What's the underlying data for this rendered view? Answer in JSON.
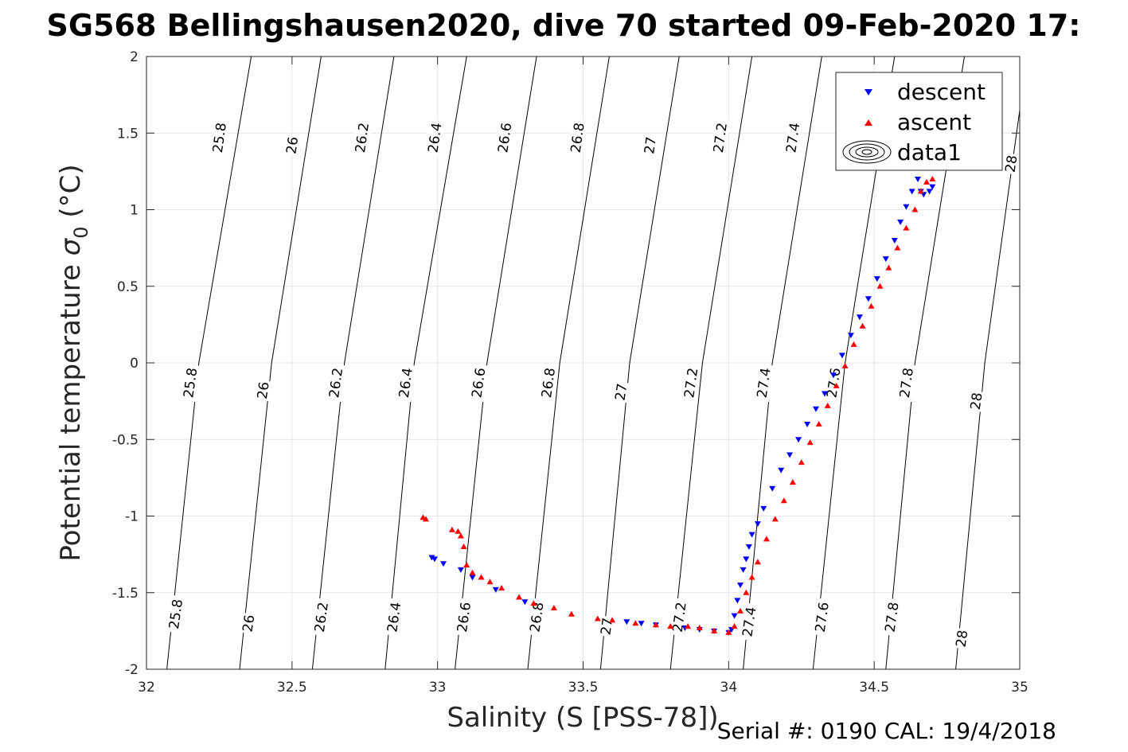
{
  "figure": {
    "title": "SG568 Bellingshausen2020, dive 70 started 09-Feb-2020 17:",
    "footer": "Serial #: 0190  CAL: 19/4/2018"
  },
  "chart_data": {
    "type": "scatter",
    "xlabel": "Salinity (S [PSS-78])",
    "ylabel": "Potential temperature",
    "ylabel_symbol": "σ",
    "ylabel_subscript": "0",
    "ylabel_unit": "(°C)",
    "xlim": [
      32,
      35
    ],
    "ylim": [
      -2,
      2
    ],
    "xticks": [
      32,
      32.5,
      33,
      33.5,
      34,
      34.5,
      35
    ],
    "yticks": [
      -2,
      -1.5,
      -1,
      -0.5,
      0,
      0.5,
      1,
      1.5,
      2
    ],
    "grid": true,
    "legend": {
      "placement": "top-right",
      "entries": [
        "descent",
        "ascent",
        "data1"
      ]
    },
    "colors": {
      "descent": "#0000ff",
      "ascent": "#ff0000",
      "contour": "#000000"
    },
    "density_contours": [
      {
        "level": "25.8",
        "points": [
          [
            32.07,
            -2
          ],
          [
            32.18,
            0
          ],
          [
            32.36,
            2
          ]
        ]
      },
      {
        "level": "26",
        "points": [
          [
            32.32,
            -2
          ],
          [
            32.43,
            0
          ],
          [
            32.6,
            2
          ]
        ]
      },
      {
        "level": "26.2",
        "points": [
          [
            32.57,
            -2
          ],
          [
            32.68,
            0
          ],
          [
            32.85,
            2
          ]
        ]
      },
      {
        "level": "26.4",
        "points": [
          [
            32.82,
            -2
          ],
          [
            32.92,
            0
          ],
          [
            33.1,
            2
          ]
        ]
      },
      {
        "level": "26.6",
        "points": [
          [
            33.06,
            -2
          ],
          [
            33.17,
            0
          ],
          [
            33.34,
            2
          ]
        ]
      },
      {
        "level": "26.8",
        "points": [
          [
            33.31,
            -2
          ],
          [
            33.42,
            0
          ],
          [
            33.59,
            2
          ]
        ]
      },
      {
        "level": "27",
        "points": [
          [
            33.56,
            -2
          ],
          [
            33.66,
            0
          ],
          [
            33.83,
            2
          ]
        ]
      },
      {
        "level": "27.2",
        "points": [
          [
            33.8,
            -2
          ],
          [
            33.91,
            0
          ],
          [
            34.08,
            2
          ]
        ]
      },
      {
        "level": "27.4",
        "points": [
          [
            34.05,
            -2
          ],
          [
            34.15,
            0
          ],
          [
            34.32,
            2
          ]
        ]
      },
      {
        "level": "27.6",
        "points": [
          [
            34.29,
            -2
          ],
          [
            34.4,
            0
          ],
          [
            34.57,
            2
          ]
        ]
      },
      {
        "level": "27.8",
        "points": [
          [
            34.54,
            -2
          ],
          [
            34.64,
            0
          ],
          [
            34.81,
            2
          ]
        ]
      },
      {
        "level": "28",
        "points": [
          [
            34.78,
            -2
          ],
          [
            34.88,
            0
          ],
          [
            35.0,
            1.65
          ]
        ]
      }
    ],
    "contour_labels": [
      {
        "text": "25.8",
        "x": 32.1,
        "y": -1.64
      },
      {
        "text": "26",
        "x": 32.35,
        "y": -1.7
      },
      {
        "text": "26.2",
        "x": 32.6,
        "y": -1.66
      },
      {
        "text": "26.4",
        "x": 32.85,
        "y": -1.66
      },
      {
        "text": "26.6",
        "x": 33.09,
        "y": -1.66
      },
      {
        "text": "26.8",
        "x": 33.34,
        "y": -1.66
      },
      {
        "text": "27",
        "x": 33.58,
        "y": -1.72
      },
      {
        "text": "27.2",
        "x": 33.83,
        "y": -1.66
      },
      {
        "text": "27.4",
        "x": 34.07,
        "y": -1.69
      },
      {
        "text": "27.6",
        "x": 34.32,
        "y": -1.66
      },
      {
        "text": "27.8",
        "x": 34.56,
        "y": -1.66
      },
      {
        "text": "28",
        "x": 34.8,
        "y": -1.8
      },
      {
        "text": "25.8",
        "x": 32.15,
        "y": -0.13
      },
      {
        "text": "26",
        "x": 32.4,
        "y": -0.18
      },
      {
        "text": "26.2",
        "x": 32.65,
        "y": -0.13
      },
      {
        "text": "26.4",
        "x": 32.89,
        "y": -0.13
      },
      {
        "text": "26.6",
        "x": 33.14,
        "y": -0.13
      },
      {
        "text": "26.8",
        "x": 33.38,
        "y": -0.13
      },
      {
        "text": "27",
        "x": 33.63,
        "y": -0.19
      },
      {
        "text": "27.2",
        "x": 33.87,
        "y": -0.13
      },
      {
        "text": "27.4",
        "x": 34.12,
        "y": -0.13
      },
      {
        "text": "27.6",
        "x": 34.36,
        "y": -0.13
      },
      {
        "text": "27.8",
        "x": 34.61,
        "y": -0.13
      },
      {
        "text": "28",
        "x": 34.85,
        "y": -0.25
      },
      {
        "text": "25.8",
        "x": 32.25,
        "y": 1.47
      },
      {
        "text": "26",
        "x": 32.5,
        "y": 1.42
      },
      {
        "text": "26.2",
        "x": 32.74,
        "y": 1.47
      },
      {
        "text": "26.4",
        "x": 32.99,
        "y": 1.47
      },
      {
        "text": "26.6",
        "x": 33.23,
        "y": 1.47
      },
      {
        "text": "26.8",
        "x": 33.48,
        "y": 1.47
      },
      {
        "text": "27",
        "x": 33.73,
        "y": 1.42
      },
      {
        "text": "27.2",
        "x": 33.97,
        "y": 1.47
      },
      {
        "text": "27.4",
        "x": 34.22,
        "y": 1.47
      },
      {
        "text": "28",
        "x": 34.97,
        "y": 1.3
      }
    ],
    "series": [
      {
        "name": "descent",
        "marker": "triangle-down",
        "x": [
          32.98,
          32.99,
          33.02,
          33.08,
          33.12,
          33.2,
          33.3,
          33.65,
          33.7,
          33.75,
          33.85,
          33.9,
          33.95,
          34.0,
          34.01,
          34.02,
          34.03,
          34.04,
          34.05,
          34.06,
          34.07,
          34.08,
          34.1,
          34.12,
          34.15,
          34.18,
          34.21,
          34.24,
          34.27,
          34.3,
          34.33,
          34.36,
          34.39,
          34.42,
          34.45,
          34.48,
          34.51,
          34.54,
          34.57,
          34.59,
          34.61,
          34.63,
          34.65,
          34.66,
          34.67,
          34.69,
          34.7
        ],
        "y": [
          -1.27,
          -1.28,
          -1.31,
          -1.35,
          -1.4,
          -1.48,
          -1.56,
          -1.69,
          -1.7,
          -1.71,
          -1.73,
          -1.74,
          -1.75,
          -1.76,
          -1.74,
          -1.65,
          -1.55,
          -1.45,
          -1.35,
          -1.28,
          -1.2,
          -1.12,
          -1.05,
          -0.95,
          -0.82,
          -0.7,
          -0.6,
          -0.5,
          -0.4,
          -0.3,
          -0.2,
          -0.08,
          0.05,
          0.18,
          0.3,
          0.42,
          0.55,
          0.68,
          0.8,
          0.92,
          1.02,
          1.12,
          1.2,
          1.12,
          1.1,
          1.12,
          1.15
        ]
      },
      {
        "name": "ascent",
        "marker": "triangle-up",
        "x": [
          32.95,
          32.96,
          33.05,
          33.07,
          33.08,
          33.09,
          33.1,
          33.12,
          33.15,
          33.18,
          33.22,
          33.28,
          33.33,
          33.4,
          33.46,
          33.55,
          33.6,
          33.68,
          33.75,
          33.8,
          33.86,
          33.9,
          33.95,
          34.0,
          34.02,
          34.04,
          34.06,
          34.08,
          34.1,
          34.13,
          34.16,
          34.19,
          34.22,
          34.25,
          34.28,
          34.31,
          34.34,
          34.37,
          34.4,
          34.43,
          34.46,
          34.49,
          34.52,
          34.55,
          34.58,
          34.61,
          34.64,
          34.66,
          34.68,
          34.7
        ],
        "y": [
          -1.01,
          -1.02,
          -1.09,
          -1.1,
          -1.13,
          -1.2,
          -1.32,
          -1.37,
          -1.4,
          -1.43,
          -1.47,
          -1.53,
          -1.57,
          -1.6,
          -1.64,
          -1.67,
          -1.68,
          -1.7,
          -1.71,
          -1.72,
          -1.72,
          -1.73,
          -1.75,
          -1.76,
          -1.72,
          -1.62,
          -1.5,
          -1.4,
          -1.3,
          -1.15,
          -1.02,
          -0.9,
          -0.78,
          -0.65,
          -0.52,
          -0.4,
          -0.28,
          -0.15,
          -0.02,
          0.12,
          0.24,
          0.37,
          0.5,
          0.62,
          0.75,
          0.88,
          1.0,
          1.12,
          1.18,
          1.2
        ]
      }
    ]
  }
}
